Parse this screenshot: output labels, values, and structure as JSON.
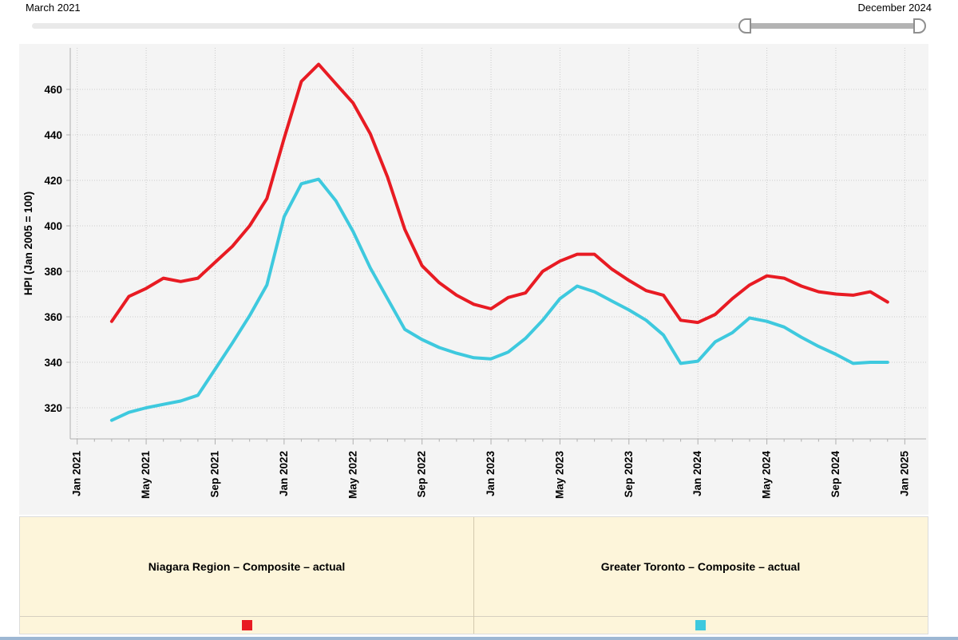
{
  "range_selector": {
    "start_label": "March 2021",
    "end_label": "December 2024"
  },
  "chart_data": {
    "type": "line",
    "title": "",
    "xlabel": "",
    "ylabel": "HPI (Jan 2005 = 100)",
    "grid": true,
    "legend_position": "bottom",
    "y_ticks": [
      320,
      340,
      360,
      380,
      400,
      420,
      440,
      460
    ],
    "ylim": [
      306,
      478
    ],
    "x_range": {
      "start": "Mar 2021",
      "end": "Dec 2024",
      "interval": "monthly",
      "points": 46
    },
    "x_tick_labels": [
      "Jan 2021",
      "May 2021",
      "Sep 2021",
      "Jan 2022",
      "May 2022",
      "Sep 2022",
      "Jan 2023",
      "May 2023",
      "Sep 2023",
      "Jan 2024",
      "May 2024",
      "Sep 2024",
      "Jan 2025"
    ],
    "series": [
      {
        "name": "Niagara Region – Composite – actual",
        "color": "#e81b23",
        "values": [
          358,
          369,
          372.5,
          377,
          375.5,
          377,
          384,
          391,
          400,
          412,
          438.5,
          463.5,
          471,
          462.5,
          454,
          440.5,
          421.5,
          398.5,
          382.5,
          375,
          369.5,
          365.5,
          363.5,
          368.5,
          370.5,
          380,
          384.5,
          387.5,
          387.5,
          381,
          376,
          371.5,
          369.5,
          358.5,
          357.5,
          361,
          368,
          374,
          378,
          377,
          373.5,
          371,
          370,
          369.5,
          371,
          366.5
        ]
      },
      {
        "name": "Greater Toronto – Composite – actual",
        "color": "#3ec9de",
        "values": [
          314.5,
          318,
          320,
          321.5,
          323,
          325.5,
          337,
          348.5,
          360.5,
          374,
          404,
          418.5,
          420.5,
          411,
          397.5,
          381.5,
          368,
          354.5,
          350,
          346.5,
          344,
          342,
          341.5,
          344.5,
          350.5,
          358.5,
          368,
          373.5,
          371,
          367,
          363,
          358.5,
          352,
          339.5,
          340.5,
          349,
          353,
          359.5,
          358,
          355.5,
          351,
          347,
          343.5,
          339.5,
          340,
          340
        ]
      }
    ]
  },
  "legend": {
    "items": [
      {
        "label": "Niagara Region – Composite – actual",
        "color": "#e81b23"
      },
      {
        "label": "Greater Toronto – Composite – actual",
        "color": "#3ec9de"
      }
    ]
  }
}
